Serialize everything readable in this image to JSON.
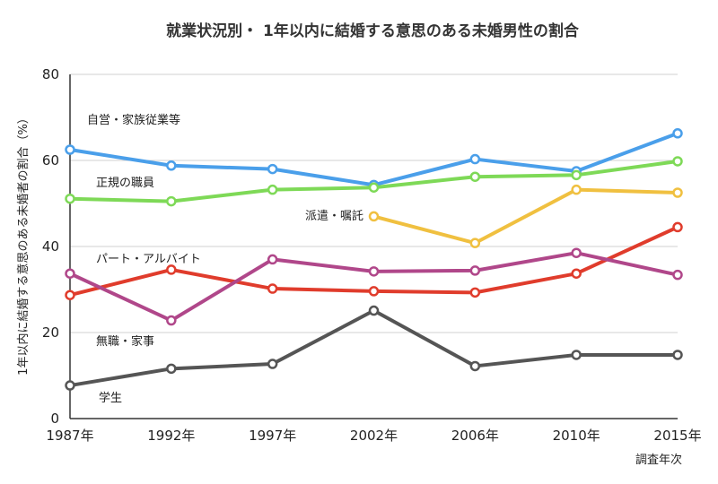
{
  "chart_data": {
    "type": "line",
    "title": "就業状況別・ 1年以内に結婚する意思のある未婚男性の割合",
    "xlabel": "調査年次",
    "ylabel": "1年以内に結婚する意思のある未婚者の割合（%）",
    "categories": [
      "1987年",
      "1992年",
      "1997年",
      "2002年",
      "2006年",
      "2010年",
      "2015年"
    ],
    "ylim": [
      0,
      80
    ],
    "yticks": [
      0,
      20,
      40,
      60,
      80
    ],
    "grid": true,
    "series": [
      {
        "name": "自営・家族従業等",
        "color": "#4a9fea",
        "values": [
          62.5,
          58.8,
          58.0,
          54.3,
          60.3,
          57.5,
          66.3
        ]
      },
      {
        "name": "正規の職員",
        "color": "#7ed957",
        "values": [
          51.1,
          50.5,
          53.2,
          53.7,
          56.2,
          56.6,
          59.8
        ]
      },
      {
        "name": "派遣・嘱託",
        "color": "#f0c040",
        "values": [
          null,
          null,
          null,
          47.0,
          40.8,
          53.2,
          52.5
        ]
      },
      {
        "name": "パート・アルバイト",
        "color": "#e03c2c",
        "values": [
          28.7,
          34.6,
          30.2,
          29.6,
          29.3,
          33.7,
          44.5
        ]
      },
      {
        "name": "無職・家事",
        "color": "#b0478a",
        "values": [
          33.7,
          22.8,
          37.0,
          34.2,
          34.4,
          38.5,
          33.4
        ]
      },
      {
        "name": "学生",
        "color": "#555555",
        "values": [
          7.7,
          11.6,
          12.7,
          25.1,
          12.2,
          14.8,
          14.8
        ]
      }
    ]
  }
}
